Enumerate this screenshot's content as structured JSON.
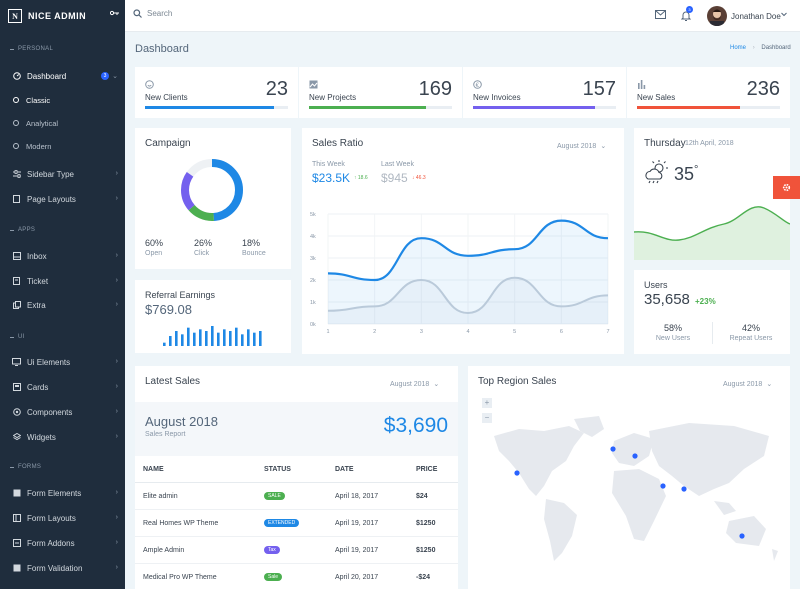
{
  "brand": {
    "name": "NICE ADMIN",
    "logo_letter": "N"
  },
  "sidebar": {
    "sections": [
      "PERSONAL",
      "APPS",
      "UI",
      "FORMS"
    ],
    "dashboard": {
      "label": "Dashboard",
      "badge": "3"
    },
    "sub_items": [
      "Classic",
      "Analytical",
      "Modern"
    ],
    "items": [
      {
        "label": "Sidebar Type",
        "icon": "sliders-icon"
      },
      {
        "label": "Page Layouts",
        "icon": "page-icon"
      },
      {
        "label": "Inbox",
        "icon": "inbox-icon"
      },
      {
        "label": "Ticket",
        "icon": "ticket-icon"
      },
      {
        "label": "Extra",
        "icon": "copy-icon"
      },
      {
        "label": "Ui Elements",
        "icon": "monitor-icon"
      },
      {
        "label": "Cards",
        "icon": "card-icon"
      },
      {
        "label": "Components",
        "icon": "component-icon"
      },
      {
        "label": "Widgets",
        "icon": "layers-icon"
      },
      {
        "label": "Form Elements",
        "icon": "form-icon"
      },
      {
        "label": "Form Layouts",
        "icon": "layout-icon"
      },
      {
        "label": "Form Addons",
        "icon": "addon-icon"
      },
      {
        "label": "Form Validation",
        "icon": "validation-icon"
      }
    ]
  },
  "topbar": {
    "search_placeholder": "Search",
    "notif_count": "3",
    "user_name": "Jonathan Doe"
  },
  "page": {
    "title": "Dashboard",
    "breadcrumb": [
      "Home",
      "Dashboard"
    ]
  },
  "stats": [
    {
      "label": "New Clients",
      "value": "23",
      "color": "#1e88e5",
      "progress": 0.9,
      "icon": "smile-icon"
    },
    {
      "label": "New Projects",
      "value": "169",
      "color": "#4caf50",
      "progress": 0.82,
      "icon": "image-icon"
    },
    {
      "label": "New Invoices",
      "value": "157",
      "color": "#7460ee",
      "progress": 0.85,
      "icon": "currency-icon"
    },
    {
      "label": "New Sales",
      "value": "236",
      "color": "#f0533a",
      "progress": 0.72,
      "icon": "bar-chart-icon"
    }
  ],
  "campaign": {
    "title": "Campaign",
    "items": [
      {
        "value": "60%",
        "label": "Open",
        "color": "#1e88e5"
      },
      {
        "value": "26%",
        "label": "Click",
        "color": "#7460ee"
      },
      {
        "value": "18%",
        "label": "Bounce",
        "color": "#4caf50"
      }
    ],
    "rest_color": "#eef1f4"
  },
  "referral": {
    "title": "Referral Earnings",
    "value": "$769.08",
    "bars": [
      2,
      6,
      9,
      7,
      11,
      8,
      10,
      9,
      12,
      8,
      10,
      9,
      11,
      7,
      10,
      8,
      9
    ],
    "bar_color": "#1e88e5"
  },
  "sales_ratio": {
    "title": "Sales Ratio",
    "period": "August 2018",
    "this_week": {
      "label": "This Week",
      "value": "$23.5K",
      "change": "18.6",
      "color": "#1e88e5"
    },
    "last_week": {
      "label": "Last Week",
      "value": "$945",
      "change": "46.3",
      "color": "#b0b8c2"
    }
  },
  "chart_data": {
    "type": "line",
    "x": [
      1,
      2,
      3,
      4,
      5,
      6,
      7
    ],
    "ylim": [
      0,
      5000
    ],
    "yticks": [
      "0k",
      "1k",
      "2k",
      "3k",
      "4k",
      "5k"
    ],
    "series": [
      {
        "values": [
          2300,
          2000,
          3900,
          3100,
          3400,
          4700,
          3900
        ],
        "color": "#1e88e5"
      },
      {
        "values": [
          600,
          800,
          2000,
          500,
          2100,
          800,
          1300
        ],
        "color": "#c8d0da"
      }
    ]
  },
  "weather": {
    "day": "Thursday",
    "date": "12th April, 2018",
    "temp": "35",
    "unit": "°",
    "area_color": "#4caf50"
  },
  "users": {
    "title": "Users",
    "value": "35,658",
    "change": "+23%",
    "change_color": "#4caf50",
    "new": {
      "value": "58%",
      "label": "New Users"
    },
    "repeat": {
      "value": "42%",
      "label": "Repeat Users"
    }
  },
  "latest_sales": {
    "title": "Latest Sales",
    "period": "August 2018",
    "month": "August 2018",
    "sub": "Sales Report",
    "total": "$3,690",
    "headers": [
      "NAME",
      "STATUS",
      "DATE",
      "PRICE"
    ],
    "rows": [
      {
        "name": "Elite admin",
        "status": "SALE",
        "status_color": "#4caf50",
        "date": "April 18, 2017",
        "price": "$24"
      },
      {
        "name": "Real Homes WP Theme",
        "status": "EXTENDED",
        "status_color": "#1e88e5",
        "date": "April 19, 2017",
        "price": "$1250"
      },
      {
        "name": "Ample Admin",
        "status": "Tax",
        "status_color": "#7460ee",
        "date": "April 19, 2017",
        "price": "$1250"
      },
      {
        "name": "Medical Pro WP Theme",
        "status": "Sale",
        "status_color": "#4caf50",
        "date": "April 20, 2017",
        "price": "-$24"
      }
    ]
  },
  "region": {
    "title": "Top Region Sales",
    "period": "August 2018",
    "zoom_in": "+",
    "zoom_out": "−",
    "marker_color": "#2962ff"
  }
}
